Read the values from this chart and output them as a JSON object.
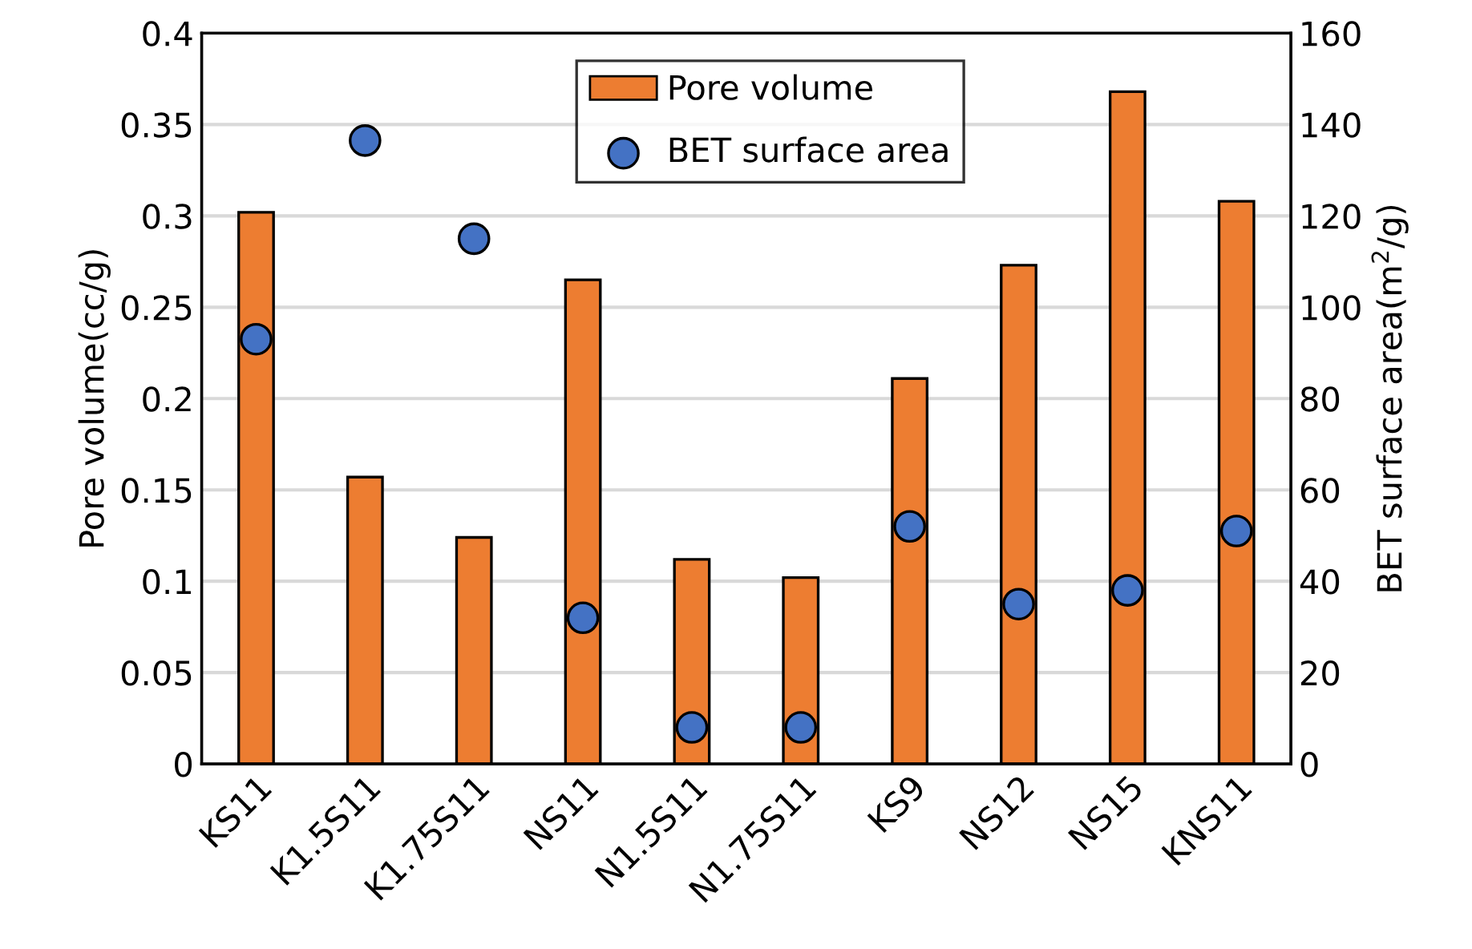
{
  "chart_data": {
    "type": "bar",
    "ylabel": "Pore volume(cc/g)",
    "y2label": "BET surface area(m$^{2}$/g)",
    "categories": [
      "KS11",
      "K1.5S11",
      "K1.75S11",
      "NS11",
      "N1.5S11",
      "N1.75S11",
      "KS9",
      "NS12",
      "NS15",
      "KNS11"
    ],
    "series": [
      {
        "name": "Pore volume",
        "color": "#ed7d31",
        "values": [
          0.302,
          0.157,
          0.124,
          0.265,
          0.112,
          0.102,
          0.211,
          0.273,
          0.368,
          0.308
        ]
      },
      {
        "name": "BET surface area",
        "type": "scatter",
        "axis": "y2",
        "color": "#4472c4",
        "marker": "circle",
        "values": [
          93,
          136.5,
          115,
          32,
          8,
          8,
          52,
          35,
          38,
          51
        ]
      }
    ],
    "ylim": [
      0,
      0.4
    ],
    "yticks": [
      0,
      0.05,
      0.1,
      0.15,
      0.2,
      0.25,
      0.3,
      0.35,
      0.4
    ],
    "y2lim": [
      0,
      160
    ],
    "y2ticks": [
      0,
      20,
      40,
      60,
      80,
      100,
      120,
      140,
      160
    ],
    "grid": "y",
    "legend": "top right"
  }
}
